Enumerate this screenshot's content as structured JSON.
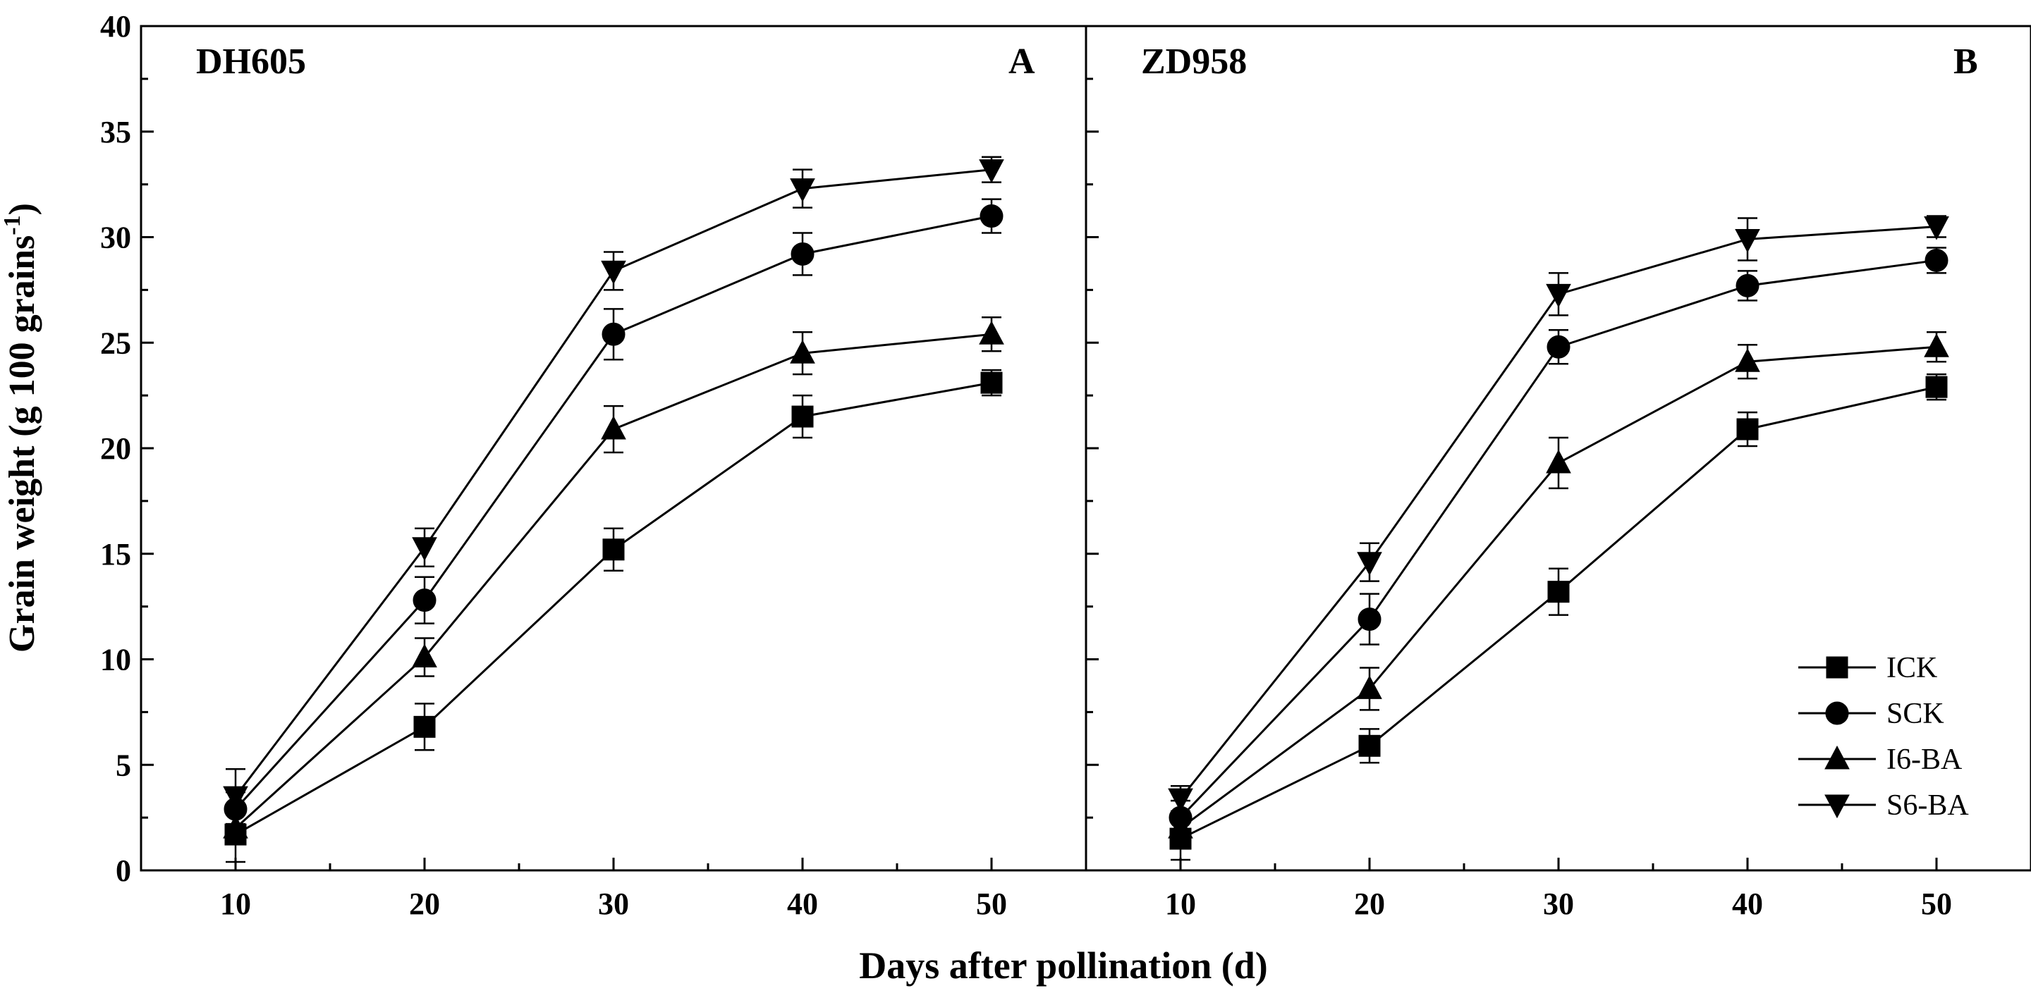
{
  "chart_data": {
    "type": "line",
    "ylabel": "Grain weight (g 100 grains",
    "ylabel_sup": "-1",
    "ylabel_close": ")",
    "xlabel": "Days after pollination (d)",
    "ylim": [
      0,
      40
    ],
    "yticks": [
      0,
      5,
      10,
      15,
      20,
      25,
      30,
      35,
      40
    ],
    "xlim": [
      5,
      55
    ],
    "xticks": [
      10,
      20,
      30,
      40,
      50
    ],
    "legend": {
      "placement": "bottom-right of panel B",
      "entries": [
        {
          "name": "ICK",
          "marker": "square"
        },
        {
          "name": "SCK",
          "marker": "circle"
        },
        {
          "name": "I6-BA",
          "marker": "triangle-up"
        },
        {
          "name": "S6-BA",
          "marker": "triangle-down"
        }
      ]
    },
    "panels": [
      {
        "name": "DH605",
        "letter": "A",
        "x": [
          10,
          20,
          30,
          40,
          50
        ],
        "series": [
          {
            "name": "ICK",
            "marker": "square",
            "values": [
              1.7,
              6.8,
              15.2,
              21.5,
              23.1
            ],
            "errors": [
              1.3,
              1.1,
              1.0,
              1.0,
              0.6
            ]
          },
          {
            "name": "SCK",
            "marker": "circle",
            "values": [
              2.9,
              12.8,
              25.4,
              29.2,
              31.0
            ],
            "errors": [
              0.8,
              1.1,
              1.2,
              1.0,
              0.8
            ]
          },
          {
            "name": "I6-BA",
            "marker": "triangle-up",
            "values": [
              2.0,
              10.1,
              20.9,
              24.5,
              25.4
            ],
            "errors": [
              0.7,
              0.9,
              1.1,
              1.0,
              0.8
            ]
          },
          {
            "name": "S6-BA",
            "marker": "triangle-down",
            "values": [
              3.5,
              15.3,
              28.4,
              32.3,
              33.2
            ],
            "errors": [
              1.3,
              0.9,
              0.9,
              0.9,
              0.6
            ]
          }
        ]
      },
      {
        "name": "ZD958",
        "letter": "B",
        "x": [
          10,
          20,
          30,
          40,
          50
        ],
        "series": [
          {
            "name": "ICK",
            "marker": "square",
            "values": [
              1.5,
              5.9,
              13.2,
              20.9,
              22.9
            ],
            "errors": [
              1.0,
              0.8,
              1.1,
              0.8,
              0.6
            ]
          },
          {
            "name": "SCK",
            "marker": "circle",
            "values": [
              2.5,
              11.9,
              24.8,
              27.7,
              28.9
            ],
            "errors": [
              0.8,
              1.2,
              0.8,
              0.7,
              0.6
            ]
          },
          {
            "name": "I6-BA",
            "marker": "triangle-up",
            "values": [
              2.0,
              8.6,
              19.3,
              24.1,
              24.8
            ],
            "errors": [
              0.7,
              1.0,
              1.2,
              0.8,
              0.7
            ]
          },
          {
            "name": "S6-BA",
            "marker": "triangle-down",
            "values": [
              3.4,
              14.6,
              27.3,
              29.9,
              30.5
            ],
            "errors": [
              0.6,
              0.9,
              1.0,
              1.0,
              0.5
            ]
          }
        ]
      }
    ]
  }
}
